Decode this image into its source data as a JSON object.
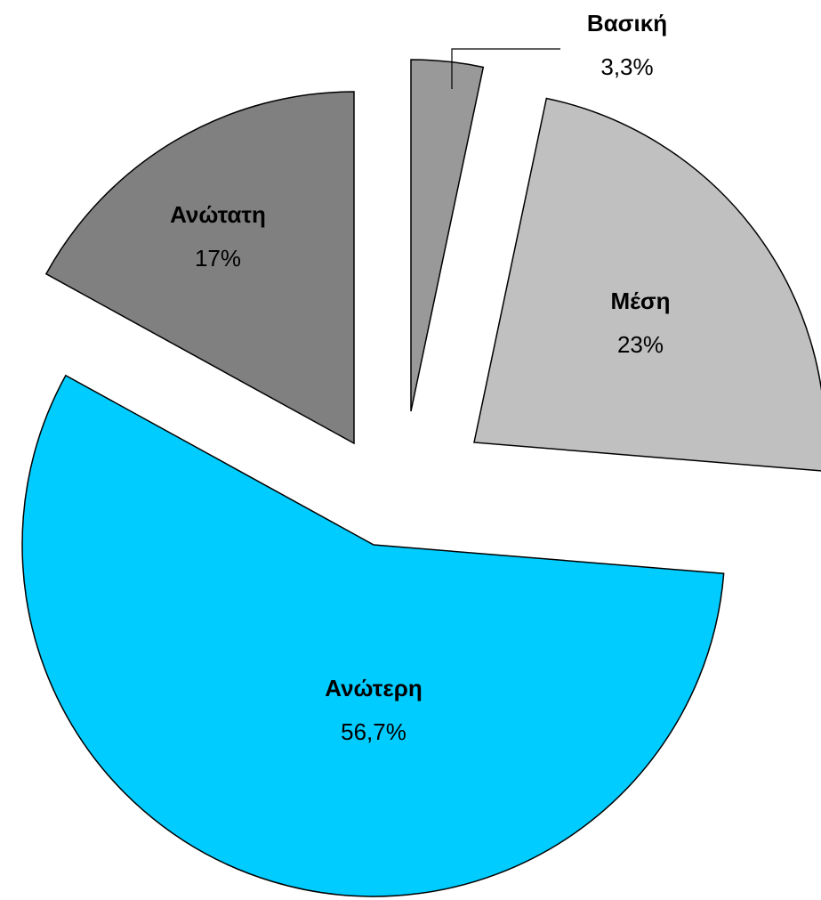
{
  "chart_data": {
    "type": "pie",
    "categories": [
      "Βασική",
      "Μέση",
      "Ανώτερη",
      "Ανώτατη"
    ],
    "values": [
      3.3,
      23,
      56.7,
      17
    ],
    "value_labels": [
      "3,3%",
      "23%",
      "56,7%",
      "17%"
    ],
    "colors": [
      "#999999",
      "#c0c0c0",
      "#00ccff",
      "#808080"
    ]
  }
}
